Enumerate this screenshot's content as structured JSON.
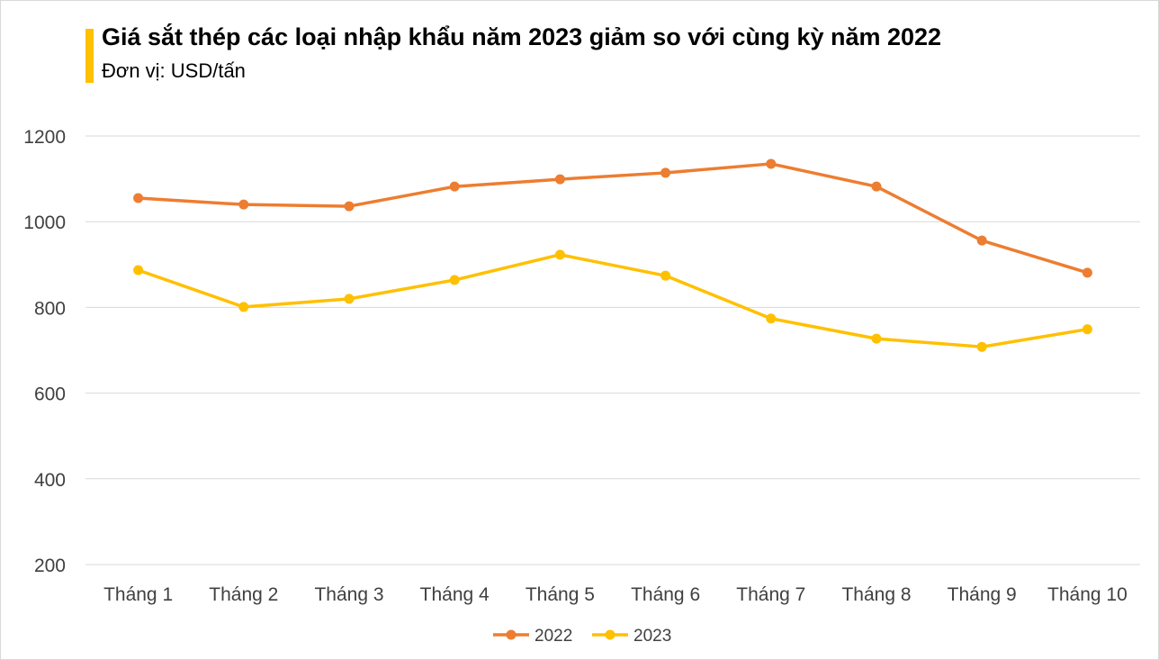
{
  "chart_data": {
    "type": "line",
    "title": "Giá sắt thép các loại nhập khẩu năm 2023 giảm so với cùng kỳ năm 2022",
    "subtitle": "Đơn vị: USD/tấn",
    "categories": [
      "Tháng 1",
      "Tháng 2",
      "Tháng 3",
      "Tháng 4",
      "Tháng 5",
      "Tháng 6",
      "Tháng 7",
      "Tháng 8",
      "Tháng 9",
      "Tháng 10"
    ],
    "series": [
      {
        "name": "2022",
        "color": "#ed7d31",
        "values": [
          1055,
          1040,
          1036,
          1082,
          1099,
          1114,
          1135,
          1082,
          956,
          881
        ]
      },
      {
        "name": "2023",
        "color": "#ffc000",
        "values": [
          887,
          801,
          820,
          864,
          923,
          874,
          774,
          727,
          708,
          749
        ]
      }
    ],
    "ylim": [
      200,
      1200
    ],
    "yticks": [
      "200",
      "400",
      "600",
      "800",
      "1000",
      "1200"
    ],
    "grid": true,
    "legend": "bottom"
  }
}
